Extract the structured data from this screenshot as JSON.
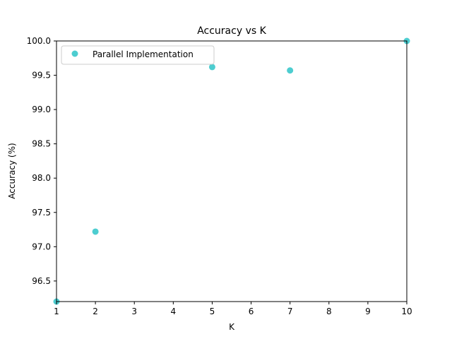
{
  "chart_data": {
    "type": "scatter",
    "title": "Accuracy vs K",
    "xlabel": "K",
    "ylabel": "Accuracy (%)",
    "xlim": [
      1,
      10
    ],
    "ylim": [
      96.2,
      100.0
    ],
    "x_ticks": [
      1,
      2,
      3,
      4,
      5,
      6,
      7,
      8,
      9,
      10
    ],
    "x_tick_labels": [
      "1",
      "2",
      "3",
      "4",
      "5",
      "6",
      "7",
      "8",
      "9",
      "10"
    ],
    "y_ticks": [
      96.5,
      97.0,
      97.5,
      98.0,
      98.5,
      99.0,
      99.5,
      100.0
    ],
    "y_tick_labels": [
      "96.5",
      "97.0",
      "97.5",
      "98.0",
      "98.5",
      "99.0",
      "99.5",
      "100.0"
    ],
    "grid": false,
    "legend_position": "top-left",
    "series": [
      {
        "name": "Parallel Implementation",
        "color": "#2ec4c8",
        "marker": "circle",
        "x": [
          1,
          2,
          5,
          7,
          10
        ],
        "y": [
          96.2,
          97.22,
          99.62,
          99.57,
          100.0
        ]
      }
    ]
  }
}
